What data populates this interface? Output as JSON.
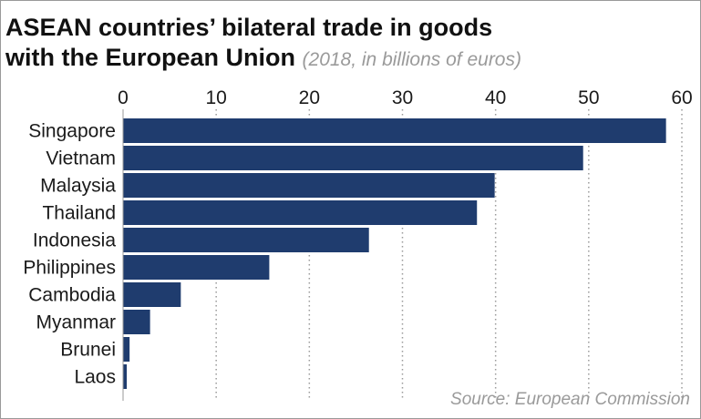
{
  "title_line1": "ASEAN countries’ bilateral trade in goods",
  "title_line2": "with the European Union",
  "subtitle": "(2018, in billions of euros)",
  "source": "Source: European Commission",
  "colors": {
    "bar": "#1f3c6e",
    "grid": "#9a9a9a",
    "text": "#1a1a1a",
    "muted": "#9a9a9a"
  },
  "chart_data": {
    "type": "bar",
    "orientation": "horizontal",
    "categories": [
      "Singapore",
      "Vietnam",
      "Malaysia",
      "Thailand",
      "Indonesia",
      "Philippines",
      "Cambodia",
      "Myanmar",
      "Brunei",
      "Laos"
    ],
    "values": [
      58.3,
      49.4,
      39.9,
      38.0,
      26.4,
      15.7,
      6.2,
      2.9,
      0.7,
      0.4
    ],
    "xlim": [
      0,
      60
    ],
    "xticks": [
      0,
      10,
      20,
      30,
      40,
      50,
      60
    ],
    "x_axis_position": "top",
    "grid": "vertical dotted",
    "title": "ASEAN countries’ bilateral trade in goods with the European Union",
    "subtitle": "(2018, in billions of euros)",
    "xlabel": "",
    "ylabel": ""
  }
}
